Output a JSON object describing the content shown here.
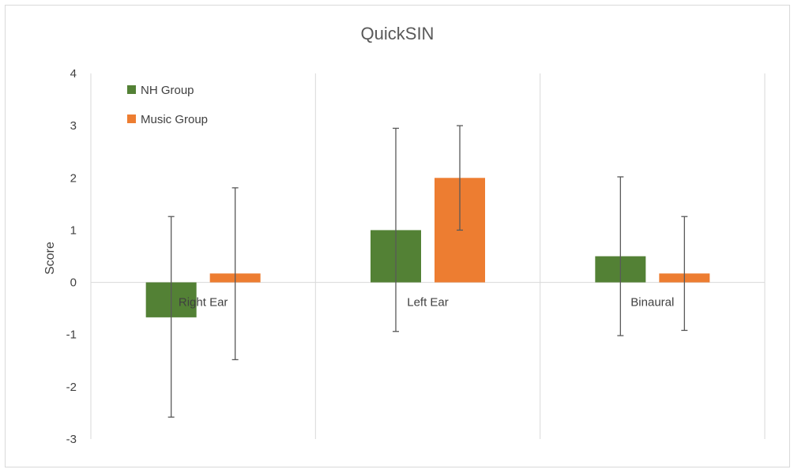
{
  "chart_data": {
    "type": "bar",
    "title": "QuickSIN",
    "xlabel": "",
    "ylabel": "Score",
    "ylim": [
      -3,
      4
    ],
    "yticks": [
      4,
      3,
      2,
      1,
      0,
      -1,
      -2,
      -3
    ],
    "categories": [
      "Right Ear",
      "Left Ear",
      "Binaural"
    ],
    "series": [
      {
        "name": "NH Group",
        "color": "#538135",
        "values": [
          -0.67,
          1.0,
          0.5
        ],
        "error_low": [
          -2.58,
          -0.94,
          -1.02
        ],
        "error_high": [
          1.26,
          2.95,
          2.02
        ]
      },
      {
        "name": "Music Group",
        "color": "#ED7D31",
        "values": [
          0.17,
          2.0,
          0.17
        ],
        "error_low": [
          -1.48,
          1.0,
          -0.92
        ],
        "error_high": [
          1.81,
          3.0,
          1.26
        ]
      }
    ],
    "grid": "vertical-category-separators",
    "legend_position": "top-left"
  }
}
